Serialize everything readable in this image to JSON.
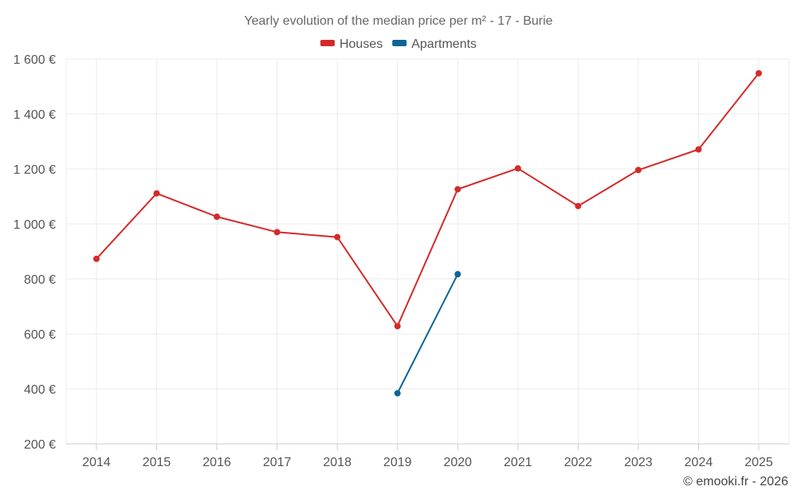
{
  "chart_data": {
    "type": "line",
    "title": "Yearly evolution of the median price per m² - 17 - Burie",
    "categories": [
      "2014",
      "2015",
      "2016",
      "2017",
      "2018",
      "2019",
      "2020",
      "2021",
      "2022",
      "2023",
      "2024",
      "2025"
    ],
    "series": [
      {
        "name": "Houses",
        "color": "#d42a2a",
        "values": [
          873,
          1111,
          1026,
          970,
          952,
          628,
          1126,
          1202,
          1065,
          1196,
          1271,
          1548
        ]
      },
      {
        "name": "Apartments",
        "color": "#0e6496",
        "values": [
          null,
          null,
          null,
          null,
          null,
          384,
          817,
          null,
          null,
          null,
          null,
          null
        ]
      }
    ],
    "ylim": [
      200,
      1600
    ],
    "yticks": [
      200,
      400,
      600,
      800,
      1000,
      1200,
      1400,
      1600
    ],
    "ytick_labels": [
      "200 €",
      "400 €",
      "600 €",
      "800 €",
      "1 000 €",
      "1 200 €",
      "1 400 €",
      "1 600 €"
    ],
    "grid": true,
    "legend_position": "top-center",
    "xlabel": "",
    "ylabel": ""
  },
  "credit": "© emooki.fr - 2026"
}
